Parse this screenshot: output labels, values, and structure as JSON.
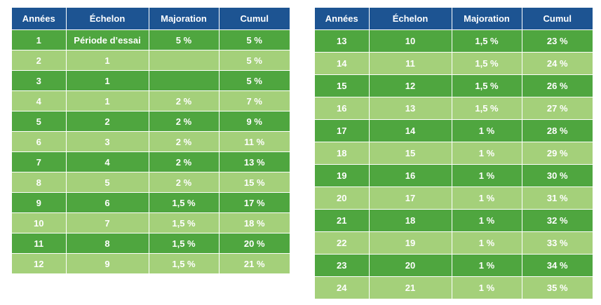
{
  "headers": [
    "Années",
    "Échelon",
    "Majoration",
    "Cumul"
  ],
  "left_table": {
    "rows": [
      [
        "1",
        "Période d’essai",
        "5 %",
        "5 %"
      ],
      [
        "2",
        "1",
        "",
        "5 %"
      ],
      [
        "3",
        "1",
        "",
        "5 %"
      ],
      [
        "4",
        "1",
        "2 %",
        "7 %"
      ],
      [
        "5",
        "2",
        "2 %",
        "9 %"
      ],
      [
        "6",
        "3",
        "2 %",
        "11 %"
      ],
      [
        "7",
        "4",
        "2 %",
        "13 %"
      ],
      [
        "8",
        "5",
        "2 %",
        "15 %"
      ],
      [
        "9",
        "6",
        "1,5 %",
        "17 %"
      ],
      [
        "10",
        "7",
        "1,5 %",
        "18 %"
      ],
      [
        "11",
        "8",
        "1,5 %",
        "20 %"
      ],
      [
        "12",
        "9",
        "1,5 %",
        "21 %"
      ]
    ]
  },
  "right_table": {
    "rows": [
      [
        "13",
        "10",
        "1,5 %",
        "23 %"
      ],
      [
        "14",
        "11",
        "1,5 %",
        "24 %"
      ],
      [
        "15",
        "12",
        "1,5 %",
        "26 %"
      ],
      [
        "16",
        "13",
        "1,5 %",
        "27 %"
      ],
      [
        "17",
        "14",
        "1 %",
        "28 %"
      ],
      [
        "18",
        "15",
        "1 %",
        "29 %"
      ],
      [
        "19",
        "16",
        "1 %",
        "30 %"
      ],
      [
        "20",
        "17",
        "1 %",
        "31 %"
      ],
      [
        "21",
        "18",
        "1 %",
        "32 %"
      ],
      [
        "22",
        "19",
        "1 %",
        "33 %"
      ],
      [
        "23",
        "20",
        "1 %",
        "34 %"
      ],
      [
        "24",
        "21",
        "1 %",
        "35 %"
      ]
    ]
  },
  "colors": {
    "header_bg": "#1d5492",
    "row_dark": "#4fa63f",
    "row_light": "#a4d07a",
    "text": "#ffffff"
  }
}
